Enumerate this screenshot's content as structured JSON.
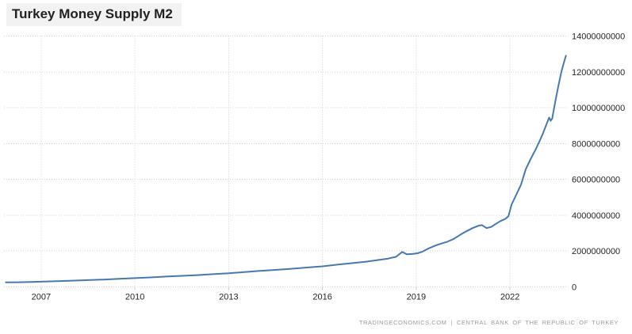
{
  "title": "Turkey Money Supply M2",
  "footer": {
    "source_primary": "TRADINGECONOMICS.COM",
    "separator": "|",
    "source_secondary": "CENTRAL BANK OF THE REPUBLIC OF TURKEY"
  },
  "chart_data": {
    "type": "line",
    "title": "Turkey Money Supply M2",
    "xlabel": "",
    "ylabel": "",
    "legend_position": "none",
    "grid": "dotted",
    "line_color": "#4679b2",
    "grid_color": "#d2d2d2",
    "tick_color": "#c9c9c9",
    "label_color": "#262626",
    "title_background": "#f2f2f2",
    "xlim": [
      2005.81,
      2023.86
    ],
    "ylim": [
      0,
      14000000000
    ],
    "x_ticks": [
      2007,
      2010,
      2013,
      2016,
      2019,
      2022
    ],
    "y_ticks": [
      0,
      2000000000,
      4000000000,
      6000000000,
      8000000000,
      10000000000,
      12000000000,
      14000000000
    ],
    "series": [
      {
        "name": "Turkey Money Supply M2",
        "x": [
          2005.87,
          2006.3,
          2006.7,
          2007.0,
          2007.5,
          2008.0,
          2008.5,
          2009.0,
          2009.5,
          2010.0,
          2010.5,
          2011.0,
          2011.5,
          2012.0,
          2012.5,
          2013.0,
          2013.5,
          2014.0,
          2014.5,
          2015.0,
          2015.5,
          2016.0,
          2016.5,
          2017.0,
          2017.4,
          2017.85,
          2018.1,
          2018.35,
          2018.55,
          2018.7,
          2018.9,
          2019.05,
          2019.2,
          2019.4,
          2019.6,
          2019.8,
          2020.0,
          2020.2,
          2020.4,
          2020.6,
          2020.8,
          2021.0,
          2021.1,
          2021.25,
          2021.4,
          2021.55,
          2021.7,
          2021.85,
          2021.95,
          2022.05,
          2022.2,
          2022.35,
          2022.5,
          2022.65,
          2022.8,
          2022.95,
          2023.05,
          2023.15,
          2023.25,
          2023.3,
          2023.35,
          2023.45,
          2023.55,
          2023.65,
          2023.72,
          2023.79
        ],
        "values": [
          250000000,
          260000000,
          280000000,
          290000000,
          320000000,
          350000000,
          380000000,
          410000000,
          450000000,
          490000000,
          530000000,
          580000000,
          620000000,
          660000000,
          710000000,
          760000000,
          830000000,
          890000000,
          950000000,
          1010000000,
          1080000000,
          1150000000,
          1250000000,
          1340000000,
          1410000000,
          1520000000,
          1580000000,
          1680000000,
          1950000000,
          1820000000,
          1840000000,
          1880000000,
          1970000000,
          2150000000,
          2300000000,
          2420000000,
          2520000000,
          2680000000,
          2900000000,
          3100000000,
          3280000000,
          3420000000,
          3450000000,
          3280000000,
          3350000000,
          3520000000,
          3680000000,
          3800000000,
          3950000000,
          4600000000,
          5150000000,
          5700000000,
          6550000000,
          7100000000,
          7600000000,
          8150000000,
          8550000000,
          9000000000,
          9450000000,
          9270000000,
          9400000000,
          10350000000,
          11250000000,
          12050000000,
          12500000000,
          12900000000
        ]
      }
    ]
  }
}
